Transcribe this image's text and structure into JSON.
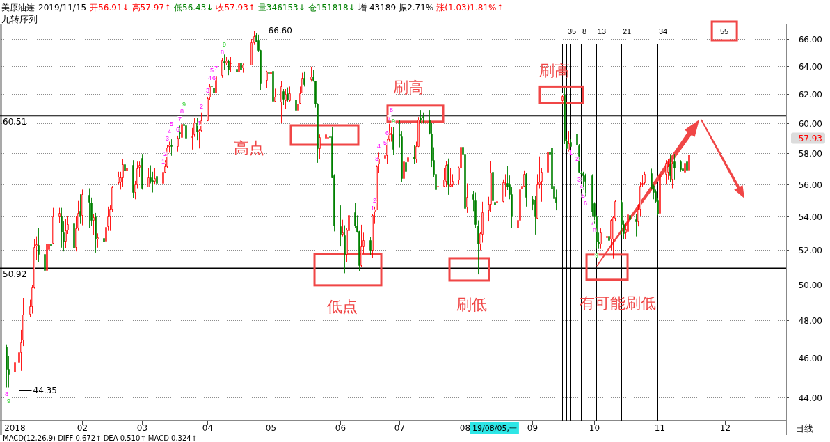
{
  "chart_data": {
    "type": "candlestick",
    "title": "美原油连",
    "subtitle": "2019/11/15",
    "x": [
      "2018-12-27",
      "2018-12-28",
      "2018-12-31",
      "2019-01-02",
      "2019-01-03",
      "2019-01-04",
      "2019-01-07",
      "2019-01-08",
      "2019-01-09",
      "2019-01-10",
      "2019-01-11",
      "2019-01-14",
      "2019-01-15",
      "2019-01-16",
      "2019-01-17",
      "2019-01-18",
      "2019-01-21",
      "2019-01-22",
      "2019-01-23",
      "2019-01-24",
      "2019-01-25",
      "2019-01-28",
      "2019-01-29",
      "2019-01-30",
      "2019-01-31",
      "2019-02-01",
      "2019-02-04",
      "2019-02-05",
      "2019-02-06",
      "2019-02-07",
      "2019-02-08",
      "2019-02-11",
      "2019-02-12",
      "2019-02-13",
      "2019-02-14",
      "2019-02-15",
      "2019-02-18",
      "2019-02-19",
      "2019-02-20",
      "2019-02-21",
      "2019-02-22",
      "2019-02-25",
      "2019-02-26",
      "2019-02-27",
      "2019-02-28",
      "2019-03-01",
      "2019-03-04",
      "2019-03-05",
      "2019-03-06",
      "2019-03-07",
      "2019-03-08",
      "2019-03-11",
      "2019-03-12",
      "2019-03-13",
      "2019-03-14",
      "2019-03-15",
      "2019-03-18",
      "2019-03-19",
      "2019-03-20",
      "2019-03-21",
      "2019-03-22",
      "2019-03-25",
      "2019-03-26",
      "2019-03-27",
      "2019-03-28",
      "2019-03-29",
      "2019-04-01",
      "2019-04-02",
      "2019-04-03",
      "2019-04-04",
      "2019-04-05",
      "2019-04-08",
      "2019-04-09",
      "2019-04-10",
      "2019-04-11",
      "2019-04-12",
      "2019-04-15",
      "2019-04-16",
      "2019-04-17",
      "2019-04-18",
      "2019-04-22",
      "2019-04-23",
      "2019-04-24",
      "2019-04-25",
      "2019-04-26",
      "2019-04-29",
      "2019-04-30",
      "2019-05-01",
      "2019-05-02",
      "2019-05-03",
      "2019-05-06",
      "2019-05-07",
      "2019-05-08",
      "2019-05-09",
      "2019-05-10",
      "2019-05-13",
      "2019-05-14",
      "2019-05-15",
      "2019-05-16",
      "2019-05-17",
      "2019-05-20",
      "2019-05-21",
      "2019-05-22",
      "2019-05-23",
      "2019-05-24",
      "2019-05-27",
      "2019-05-28",
      "2019-05-29",
      "2019-05-30",
      "2019-05-31",
      "2019-06-03",
      "2019-06-04",
      "2019-06-05",
      "2019-06-06",
      "2019-06-07",
      "2019-06-10",
      "2019-06-11",
      "2019-06-12",
      "2019-06-13",
      "2019-06-14",
      "2019-06-17",
      "2019-06-18",
      "2019-06-19",
      "2019-06-20",
      "2019-06-21",
      "2019-06-24",
      "2019-06-25",
      "2019-06-26",
      "2019-06-27",
      "2019-06-28",
      "2019-07-01",
      "2019-07-02",
      "2019-07-03",
      "2019-07-04",
      "2019-07-05",
      "2019-07-08",
      "2019-07-09",
      "2019-07-10",
      "2019-07-11",
      "2019-07-12",
      "2019-07-15",
      "2019-07-16",
      "2019-07-17",
      "2019-07-18",
      "2019-07-19",
      "2019-07-22",
      "2019-07-23",
      "2019-07-24",
      "2019-07-25",
      "2019-07-26",
      "2019-07-29",
      "2019-07-30",
      "2019-07-31",
      "2019-08-01",
      "2019-08-02",
      "2019-08-05",
      "2019-08-06",
      "2019-08-07",
      "2019-08-08",
      "2019-08-09",
      "2019-08-12",
      "2019-08-13",
      "2019-08-14",
      "2019-08-15",
      "2019-08-16",
      "2019-08-19",
      "2019-08-20",
      "2019-08-21",
      "2019-08-22",
      "2019-08-23",
      "2019-08-26",
      "2019-08-27",
      "2019-08-28",
      "2019-08-29",
      "2019-08-30",
      "2019-09-02",
      "2019-09-03",
      "2019-09-04",
      "2019-09-05",
      "2019-09-06",
      "2019-09-09",
      "2019-09-10",
      "2019-09-11",
      "2019-09-12",
      "2019-09-13",
      "2019-09-16",
      "2019-09-17",
      "2019-09-18",
      "2019-09-19",
      "2019-09-20",
      "2019-09-23",
      "2019-09-24",
      "2019-09-25",
      "2019-09-26",
      "2019-09-27",
      "2019-09-30",
      "2019-10-01",
      "2019-10-02",
      "2019-10-03",
      "2019-10-04",
      "2019-10-07",
      "2019-10-08",
      "2019-10-09",
      "2019-10-10",
      "2019-10-11",
      "2019-10-14",
      "2019-10-15",
      "2019-10-16",
      "2019-10-17",
      "2019-10-18",
      "2019-10-21",
      "2019-10-22",
      "2019-10-23",
      "2019-10-24",
      "2019-10-25",
      "2019-10-28",
      "2019-10-29",
      "2019-10-30",
      "2019-10-31",
      "2019-11-01",
      "2019-11-04",
      "2019-11-05",
      "2019-11-06",
      "2019-11-07",
      "2019-11-08",
      "2019-11-11",
      "2019-11-12",
      "2019-11-13",
      "2019-11-14",
      "2019-11-15"
    ],
    "ohlc": [
      [
        46.59,
        46.72,
        44.5,
        45.43
      ],
      [
        45.43,
        46.09,
        44.5,
        45.16
      ],
      [
        45.28,
        46.52,
        44.78,
        45.78
      ],
      [
        45.78,
        47.83,
        44.35,
        46.29
      ],
      [
        46.29,
        47.49,
        45.34,
        46.83
      ],
      [
        46.96,
        49.24,
        46.63,
        48.31
      ],
      [
        48.37,
        49.14,
        48.17,
        48.79
      ],
      [
        48.79,
        49.97,
        48.37,
        49.83
      ],
      [
        49.83,
        52.64,
        49.76,
        52.15
      ],
      [
        52.22,
        52.79,
        51.4,
        52.31
      ],
      [
        52.28,
        53.31,
        51.26,
        51.76
      ],
      [
        51.76,
        52.12,
        50.4,
        50.83
      ],
      [
        50.83,
        52.49,
        50.69,
        52.34
      ],
      [
        52.04,
        52.49,
        51.54,
        52.34
      ],
      [
        52.34,
        52.64,
        51.04,
        52.24
      ],
      [
        52.42,
        54.52,
        52.34,
        54.0
      ],
      [
        54.0,
        54.52,
        53.61,
        54.21
      ],
      [
        54.0,
        54.52,
        52.12,
        53.06
      ],
      [
        53.01,
        53.69,
        51.9,
        52.49
      ],
      [
        52.52,
        53.84,
        52.09,
        53.16
      ],
      [
        53.21,
        53.99,
        52.94,
        53.54
      ],
      [
        53.58,
        53.69,
        51.36,
        52.12
      ],
      [
        52.15,
        53.99,
        51.9,
        53.28
      ],
      [
        53.31,
        54.95,
        53.12,
        54.21
      ],
      [
        54.32,
        55.36,
        53.54,
        54.0
      ],
      [
        54.06,
        55.66,
        53.46,
        55.36
      ],
      [
        55.31,
        55.74,
        53.31,
        54.9
      ],
      [
        54.85,
        55.16,
        53.42,
        53.79
      ],
      [
        53.76,
        54.14,
        52.87,
        53.94
      ],
      [
        54.0,
        54.21,
        51.83,
        52.64
      ],
      [
        52.64,
        52.97,
        52.12,
        52.75
      ],
      [
        52.67,
        52.82,
        51.29,
        52.49
      ],
      [
        52.52,
        53.61,
        52.31,
        53.36
      ],
      [
        53.39,
        54.6,
        53.12,
        53.99
      ],
      [
        53.99,
        54.67,
        53.12,
        54.47
      ],
      [
        54.47,
        55.89,
        54.29,
        55.82
      ],
      [
        56.13,
        56.79,
        55.97,
        56.46
      ],
      [
        56.17,
        56.79,
        55.66,
        56.41
      ],
      [
        56.43,
        57.62,
        55.82,
        57.26
      ],
      [
        57.26,
        57.67,
        56.71,
        56.88
      ],
      [
        56.88,
        57.87,
        56.71,
        57.07
      ],
      [
        57.21,
        57.54,
        55.13,
        55.48
      ],
      [
        55.48,
        56.21,
        55.05,
        55.97
      ],
      [
        55.97,
        57.45,
        55.74,
        56.99
      ],
      [
        57.09,
        57.45,
        56.46,
        57.24
      ],
      [
        57.7,
        57.95,
        55.66,
        55.77
      ],
      [
        55.85,
        57.04,
        55.82,
        56.43
      ],
      [
        56.43,
        57.21,
        56.05,
        56.21
      ],
      [
        56.26,
        56.79,
        55.48,
        56.18
      ],
      [
        56.21,
        57.01,
        55.97,
        56.38
      ],
      [
        56.5,
        56.55,
        54.55,
        56.05
      ],
      [
        56.05,
        57.04,
        55.97,
        56.79
      ],
      [
        56.79,
        57.54,
        56.74,
        57.12
      ],
      [
        57.12,
        58.55,
        57.04,
        58.39
      ],
      [
        58.44,
        58.76,
        58.03,
        58.55
      ],
      [
        58.55,
        58.92,
        57.83,
        58.44
      ],
      [
        58.48,
        59.16,
        58.11,
        59.0
      ],
      [
        59.37,
        59.84,
        58.97,
        59.29
      ],
      [
        59.08,
        60.31,
        58.63,
        59.97
      ],
      [
        59.97,
        60.36,
        59.69,
        59.85
      ],
      [
        59.84,
        60.05,
        58.35,
        59.03
      ],
      [
        59.05,
        59.68,
        58.24,
        59.13
      ],
      [
        59.24,
        60.34,
        59.08,
        60.05
      ],
      [
        60.05,
        60.36,
        58.87,
        59.44
      ],
      [
        59.44,
        59.6,
        58.31,
        59.53
      ],
      [
        59.53,
        60.73,
        59.44,
        60.19
      ],
      [
        60.19,
        61.83,
        60.14,
        61.75
      ],
      [
        61.83,
        62.71,
        61.61,
        62.57
      ],
      [
        62.62,
        62.95,
        62.09,
        62.54
      ],
      [
        62.48,
        62.71,
        61.88,
        62.13
      ],
      [
        62.14,
        63.38,
        61.83,
        63.29
      ],
      [
        63.34,
        64.58,
        63.16,
        64.47
      ],
      [
        64.38,
        64.85,
        63.73,
        64.25
      ],
      [
        64.25,
        64.66,
        64.09,
        64.43
      ],
      [
        64.43,
        64.47,
        63.34,
        63.73
      ],
      [
        64.19,
        64.66,
        63.57,
        64.28
      ],
      [
        63.79,
        63.96,
        63.02,
        63.61
      ],
      [
        63.61,
        64.38,
        63.02,
        64.28
      ],
      [
        64.28,
        64.62,
        63.64,
        63.73
      ],
      [
        63.91,
        64.19,
        63.52,
        64.09
      ],
      [
        64.09,
        66.0,
        64.06,
        65.72
      ],
      [
        65.75,
        66.6,
        65.6,
        66.23
      ],
      [
        66.28,
        66.47,
        65.75,
        65.79
      ],
      [
        65.91,
        66.32,
        65.04,
        65.19
      ],
      [
        65.15,
        65.19,
        62.27,
        62.8
      ],
      [
        62.98,
        63.66,
        62.45,
        63.61
      ],
      [
        63.57,
        64.77,
        62.98,
        63.52
      ],
      [
        63.43,
        63.88,
        62.77,
        63.61
      ],
      [
        63.64,
        63.7,
        60.93,
        61.54
      ],
      [
        61.54,
        62.39,
        61.44,
        61.83
      ],
      [
        61.49,
        62.95,
        60.05,
        62.54
      ],
      [
        62.23,
        62.36,
        61.24,
        61.66
      ],
      [
        61.58,
        62.36,
        60.98,
        62.0
      ],
      [
        62.09,
        62.48,
        61.49,
        61.63
      ],
      [
        61.58,
        62.54,
        61.49,
        62.09
      ],
      [
        61.63,
        63.34,
        60.73,
        60.9
      ],
      [
        60.9,
        62.09,
        60.81,
        61.32
      ],
      [
        61.41,
        62.54,
        61.32,
        62.09
      ],
      [
        62.13,
        63.52,
        62.09,
        63.16
      ],
      [
        63.16,
        63.61,
        62.54,
        62.71
      ],
      [
        63.07,
        63.96,
        62.89,
        63.25
      ],
      [
        63.25,
        63.73,
        62.89,
        63.02
      ],
      [
        62.95,
        62.95,
        61.07,
        61.32
      ],
      [
        61.32,
        61.37,
        57.37,
        58.31
      ],
      [
        58.31,
        59.24,
        57.62,
        59.08
      ],
      [
        59.0,
        59.32,
        58.27,
        59.24
      ],
      [
        59.0,
        59.56,
        58.35,
        59.08
      ],
      [
        59.11,
        59.16,
        56.96,
        59.05
      ],
      [
        59.13,
        59.73,
        56.4,
        56.43
      ],
      [
        56.55,
        56.63,
        53.09,
        53.46
      ],
      [
        53.42,
        54.67,
        52.19,
        52.94
      ],
      [
        52.94,
        53.79,
        52.79,
        53.01
      ],
      [
        52.87,
        53.46,
        50.64,
        51.76
      ],
      [
        51.76,
        53.27,
        51.26,
        53.19
      ],
      [
        53.16,
        54.26,
        52.72,
        54.06
      ],
      [
        54.26,
        54.85,
        53.31,
        53.46
      ],
      [
        53.46,
        54.06,
        53.01,
        53.06
      ],
      [
        53.09,
        53.12,
        50.76,
        51.11
      ],
      [
        51.11,
        53.49,
        51.01,
        52.19
      ],
      [
        52.19,
        53.01,
        51.76,
        52.55
      ],
      [
        52.55,
        52.75,
        51.69,
        51.97
      ],
      [
        51.97,
        54.14,
        51.54,
        54.09
      ],
      [
        54.29,
        54.6,
        53.54,
        54.41
      ],
      [
        54.41,
        57.21,
        54.37,
        57.12
      ],
      [
        57.32,
        58.03,
        56.71,
        57.62
      ],
      [
        57.7,
        58.27,
        56.79,
        57.87
      ],
      [
        57.87,
        58.92,
        57.29,
        58.84
      ],
      [
        58.92,
        59.97,
        58.76,
        59.24
      ],
      [
        59.24,
        59.73,
        58.76,
        59.32
      ],
      [
        59.24,
        59.73,
        57.87,
        58.27
      ],
      [
        59.27,
        60.22,
        58.39,
        59.21
      ],
      [
        59.13,
        59.48,
        56.13,
        56.38
      ],
      [
        56.38,
        57.62,
        56.05,
        57.45
      ],
      [
        57.4,
        57.79,
        56.55,
        56.83
      ],
      [
        57.45,
        57.82,
        56.46,
        57.74
      ],
      [
        57.79,
        58.53,
        57.29,
        57.62
      ],
      [
        57.62,
        58.76,
        57.37,
        58.44
      ],
      [
        58.44,
        60.42,
        58.4,
        60.25
      ],
      [
        60.39,
        60.9,
        60.02,
        60.22
      ],
      [
        60.47,
        60.73,
        60.0,
        60.36
      ],
      [
        60.25,
        60.9,
        59.24,
        59.32
      ],
      [
        59.29,
        60.05,
        57.09,
        57.57
      ],
      [
        57.57,
        58.39,
        56.43,
        56.63
      ],
      [
        56.63,
        57.34,
        54.75,
        55.66
      ],
      [
        55.85,
        56.79,
        55.13,
        55.89
      ],
      [
        55.89,
        57.04,
        55.82,
        56.3
      ],
      [
        56.21,
        57.49,
        55.85,
        57.21
      ],
      [
        57.26,
        57.65,
        55.33,
        55.97
      ],
      [
        55.89,
        57.01,
        55.82,
        55.97
      ],
      [
        55.97,
        56.63,
        55.85,
        56.21
      ],
      [
        56.3,
        57.12,
        55.97,
        57.07
      ],
      [
        57.04,
        58.53,
        56.99,
        58.4
      ],
      [
        58.4,
        58.84,
        57.87,
        57.95
      ],
      [
        57.95,
        57.98,
        53.61,
        54.52
      ],
      [
        54.6,
        56.05,
        54.21,
        55.21
      ],
      [
        55.39,
        55.59,
        54.32,
        55.05
      ],
      [
        54.98,
        55.48,
        53.31,
        53.54
      ],
      [
        53.46,
        53.76,
        50.57,
        52.34
      ],
      [
        52.37,
        53.06,
        51.97,
        52.97
      ],
      [
        52.94,
        54.9,
        52.42,
        54.26
      ],
      [
        54.37,
        55.21,
        53.69,
        54.75
      ],
      [
        54.75,
        57.49,
        54.26,
        56.76
      ],
      [
        56.79,
        56.88,
        53.99,
        54.98
      ],
      [
        54.9,
        55.28,
        53.84,
        54.72
      ],
      [
        54.87,
        55.66,
        54.29,
        54.93
      ],
      [
        54.93,
        56.3,
        54.87,
        56.1
      ],
      [
        56.05,
        56.63,
        55.21,
        56.13
      ],
      [
        56.08,
        57.17,
        55.63,
        55.85
      ],
      [
        55.97,
        56.55,
        55.05,
        55.36
      ],
      [
        55.39,
        55.85,
        53.31,
        53.99
      ],
      [
        53.31,
        53.99,
        53.01,
        53.79
      ],
      [
        53.79,
        55.74,
        53.72,
        55.69
      ],
      [
        55.74,
        56.76,
        55.36,
        55.89
      ],
      [
        55.89,
        56.88,
        55.82,
        56.63
      ],
      [
        56.66,
        56.71,
        54.6,
        55.21
      ],
      [
        55.05,
        55.28,
        54.37,
        54.78
      ],
      [
        55.02,
        55.24,
        52.9,
        53.99
      ],
      [
        53.91,
        56.63,
        53.91,
        55.97
      ],
      [
        55.97,
        57.79,
        55.74,
        56.18
      ],
      [
        56.21,
        57.04,
        54.9,
        56.79
      ],
      [
        56.79,
        58.2,
        56.63,
        58.11
      ],
      [
        58.08,
        58.79,
        57.29,
        57.95
      ],
      [
        58.35,
        58.76,
        55.66,
        55.74
      ],
      [
        55.89,
        56.38,
        54.06,
        55.13
      ],
      [
        55.18,
        55.66,
        54.37,
        54.87
      ],
      [
        61.58,
        61.92,
        61.49,
        61.86
      ],
      [
        61.95,
        62.45,
        58.6,
        58.84
      ],
      [
        58.84,
        58.92,
        58.27,
        58.32
      ],
      [
        58.23,
        59.48,
        58.11,
        58.64
      ],
      [
        58.76,
        58.92,
        58.44,
        58.48
      ],
      [
        59.29,
        59.4,
        58.03,
        58.56
      ],
      [
        58.52,
        58.6,
        56.71,
        56.79
      ],
      [
        56.74,
        56.83,
        56.63,
        56.68
      ],
      [
        56.68,
        56.79,
        55.66,
        56.55
      ],
      [
        56.55,
        56.66,
        55.21,
        56.21
      ],
      [
        56.55,
        56.63,
        53.99,
        54.29
      ],
      [
        54.82,
        54.87,
        53.54,
        53.99
      ],
      [
        54.0,
        54.06,
        52.04,
        52.49
      ],
      [
        52.49,
        53.01,
        52.04,
        52.34
      ],
      [
        52.34,
        53.27,
        52.04,
        53.01
      ],
      [
        52.72,
        54.06,
        52.57,
        52.82
      ],
      [
        52.82,
        53.01,
        51.97,
        52.57
      ],
      [
        52.64,
        53.84,
        51.97,
        53.79
      ],
      [
        52.64,
        53.99,
        51.47,
        53.94
      ],
      [
        53.91,
        54.98,
        53.69,
        54.93
      ],
      [
        54.9,
        54.98,
        52.87,
        53.54
      ],
      [
        53.54,
        53.76,
        52.61,
        52.97
      ],
      [
        53.01,
        53.61,
        52.64,
        53.24
      ],
      [
        53.09,
        54.21,
        52.64,
        54.11
      ],
      [
        54.06,
        54.52,
        52.94,
        53.84
      ],
      [
        53.84,
        54.14,
        52.79,
        53.69
      ],
      [
        53.69,
        54.75,
        53.39,
        54.44
      ],
      [
        54.44,
        56.13,
        53.99,
        55.89
      ],
      [
        55.97,
        56.58,
        55.82,
        56.08
      ],
      [
        56.13,
        56.79,
        55.97,
        56.63
      ],
      [
        56.68,
        56.99,
        55.66,
        55.74
      ],
      [
        55.89,
        55.97,
        55.05,
        55.51
      ],
      [
        55.54,
        55.66,
        54.82,
        54.93
      ],
      [
        54.98,
        55.13,
        54.06,
        54.17
      ],
      [
        54.21,
        56.71,
        54.14,
        56.63
      ],
      [
        56.63,
        57.54,
        55.97,
        57.37
      ],
      [
        56.79,
        57.62,
        56.3,
        57.12
      ],
      [
        57.29,
        57.95,
        56.13,
        56.55
      ],
      [
        56.33,
        57.45,
        55.74,
        57.37
      ],
      [
        57.45,
        57.95,
        56.3,
        57.04
      ],
      [
        57.45,
        57.54,
        56.79,
        56.96
      ],
      [
        56.99,
        57.54,
        56.55,
        56.88
      ],
      [
        56.79,
        57.54,
        56.71,
        57.37
      ],
      [
        57.45,
        57.54,
        56.79,
        56.9
      ],
      [
        56.91,
        57.97,
        56.43,
        57.93
      ]
    ],
    "colors": [
      "#008000",
      "#008000",
      "#ff0000",
      "#ff0000",
      "#ff0000",
      "#ff0000",
      "#ff0000",
      "#ff0000",
      "#ff0000",
      "#ff0000",
      "#008000",
      "#008000",
      "#ff0000",
      "#ff0000",
      "#008000",
      "#ff0000",
      "#ff0000",
      "#008000",
      "#008000",
      "#ff0000",
      "#ff0000",
      "#008000",
      "#ff0000",
      "#ff0000",
      "#008000",
      "#ff0000",
      "#008000",
      "#008000",
      "#ff0000",
      "#008000",
      "#ff0000",
      "#008000",
      "#ff0000",
      "#ff0000",
      "#ff0000",
      "#ff0000",
      "#ff0000",
      "#ff0000",
      "#ff0000",
      "#008000",
      "#ff0000",
      "#008000",
      "#ff0000",
      "#ff0000",
      "#ff0000",
      "#008000",
      "#ff0000",
      "#008000",
      "#008000",
      "#ff0000",
      "#008000",
      "#ff0000",
      "#ff0000",
      "#ff0000",
      "#ff0000",
      "#008000",
      "#ff0000",
      "#008000",
      "#ff0000",
      "#008000",
      "#008000",
      "#ff0000",
      "#ff0000",
      "#008000",
      "#ff0000",
      "#ff0000",
      "#ff0000",
      "#ff0000",
      "#008000",
      "#008000",
      "#ff0000",
      "#ff0000",
      "#008000",
      "#ff0000",
      "#008000",
      "#ff0000",
      "#008000",
      "#ff0000",
      "#008000",
      "#ff0000",
      "#ff0000",
      "#ff0000",
      "#008000",
      "#008000",
      "#008000",
      "#ff0000",
      "#008000",
      "#ff0000",
      "#008000",
      "#ff0000",
      "#ff0000",
      "#008000",
      "#ff0000",
      "#008000",
      "#ff0000",
      "#008000",
      "#ff0000",
      "#ff0000",
      "#ff0000",
      "#008000",
      "#ff0000",
      "#008000",
      "#008000",
      "#008000",
      "#ff0000",
      "#ff0000",
      "#ff0000",
      "#008000",
      "#008000",
      "#008000",
      "#008000",
      "#ff0000",
      "#008000",
      "#ff0000",
      "#ff0000",
      "#008000",
      "#008000",
      "#008000",
      "#ff0000",
      "#ff0000",
      "#008000",
      "#ff0000",
      "#ff0000",
      "#ff0000",
      "#ff0000",
      "#ff0000",
      "#ff0000",
      "#ff0000",
      "#ff0000",
      "#008000",
      "#008000",
      "#008000",
      "#ff0000",
      "#008000",
      "#ff0000",
      "#008000",
      "#ff0000",
      "#ff0000",
      "#008000",
      "#008000",
      "#008000",
      "#008000",
      "#008000",
      "#008000",
      "#ff0000",
      "#ff0000",
      "#ff0000",
      "#008000",
      "#ff0000",
      "#ff0000",
      "#ff0000",
      "#ff0000",
      "#008000",
      "#008000",
      "#ff0000",
      "#008000",
      "#008000",
      "#008000",
      "#ff0000",
      "#ff0000",
      "#ff0000",
      "#ff0000",
      "#008000",
      "#008000",
      "#ff0000",
      "#ff0000",
      "#ff0000",
      "#008000",
      "#008000",
      "#008000",
      "#ff0000",
      "#ff0000",
      "#ff0000",
      "#ff0000",
      "#008000",
      "#008000",
      "#008000",
      "#ff0000",
      "#ff0000",
      "#ff0000",
      "#ff0000",
      "#008000",
      "#008000",
      "#008000",
      "#008000",
      "#ff0000",
      "#008000",
      "#008000",
      "#ff0000",
      "#008000",
      "#008000",
      "#008000",
      "#008000",
      "#008000",
      "#008000",
      "#008000",
      "#008000",
      "#008000",
      "#008000",
      "#ff0000",
      "#ff0000",
      "#008000",
      "#ff0000",
      "#ff0000",
      "#ff0000",
      "#008000",
      "#008000",
      "#ff0000",
      "#ff0000",
      "#008000",
      "#008000",
      "#ff0000",
      "#ff0000",
      "#ff0000",
      "#ff0000",
      "#008000",
      "#008000",
      "#008000",
      "#008000",
      "#ff0000",
      "#ff0000",
      "#ff0000",
      "#008000",
      "#ff0000",
      "#008000",
      "#008000",
      "#008000",
      "#ff0000",
      "#008000",
      "#ff0000"
    ],
    "xlim": [
      "2018-12-24",
      "2019-12-31"
    ],
    "xticks": [
      {
        "value": "2018-12-31",
        "label": "2018"
      },
      {
        "value": "2019-02-01",
        "label": "02"
      },
      {
        "value": "2019-03-01",
        "label": "03"
      },
      {
        "value": "2019-04-01",
        "label": "04"
      },
      {
        "value": "2019-05-01",
        "label": "05"
      },
      {
        "value": "2019-06-03",
        "label": "06"
      },
      {
        "value": "2019-07-01",
        "label": "07"
      },
      {
        "value": "2019-08-01",
        "label": "08"
      },
      {
        "value": "2019-09-02",
        "label": "09"
      },
      {
        "value": "2019-10-01",
        "label": "10"
      },
      {
        "value": "2019-11-01",
        "label": "11"
      },
      {
        "value": "2019-12-02",
        "label": "12"
      }
    ],
    "ylim": [
      42.9,
      67.1
    ],
    "yticks": [
      {
        "value": 44,
        "label": "44.00"
      },
      {
        "value": 46,
        "label": "46.00"
      },
      {
        "value": 48,
        "label": "48.00"
      },
      {
        "value": 50,
        "label": "50.00"
      },
      {
        "value": 52,
        "label": "52.00"
      },
      {
        "value": 54,
        "label": "54.00"
      },
      {
        "value": 56,
        "label": "56.00"
      },
      {
        "value": 58,
        "label": "58.00"
      },
      {
        "value": 60,
        "label": "60.00"
      },
      {
        "value": 62,
        "label": "62.00"
      },
      {
        "value": 64,
        "label": "64.00"
      },
      {
        "value": 66,
        "label": "66.00"
      }
    ],
    "log": true,
    "grid": "y",
    "ref_lines": [
      {
        "axis": "y",
        "value": 60.51,
        "label": "60.51"
      },
      {
        "axis": "y",
        "value": 50.92,
        "label": "50.92"
      },
      {
        "axis": "x",
        "value": "2019-09-16"
      },
      {
        "axis": "x",
        "value": "2019-09-18",
        "label": "3"
      },
      {
        "axis": "x",
        "value": "2019-09-20",
        "label": "5"
      },
      {
        "axis": "x",
        "value": "2019-09-25",
        "label": "8"
      },
      {
        "axis": "x",
        "value": "2019-10-02",
        "label": "13"
      },
      {
        "axis": "x",
        "value": "2019-10-14",
        "label": "21"
      },
      {
        "axis": "x",
        "value": "2019-10-31",
        "label": "34"
      },
      {
        "axis": "x",
        "value": "2019-11-29",
        "label": "55"
      }
    ],
    "annotations": [
      "开56.91↓",
      "高57.97↑",
      "低56.43↓",
      "收57.93↑",
      "量346153↓",
      "仓151818↓",
      "增-43189",
      "振2.71%",
      "涨(1.03)1.81%↑",
      "九转序列",
      {
        "text": "66.60",
        "x": "2019-04-23",
        "y": 66.6
      },
      {
        "text": "44.35",
        "x": "2019-01-02",
        "y": 44.35
      },
      "57.93",
      "高点",
      {
        "text": "刷高",
        "x": "2019-07-11",
        "y": 60.65
      },
      {
        "text": "低点",
        "x": "2019-06-10",
        "y": 50.8
      },
      {
        "text": "刷低",
        "x": "2019-08-07",
        "y": 50.8
      },
      {
        "text": "刷高",
        "x": "2019-09-16",
        "y": 61.95
      },
      {
        "text": "有可能刷低",
        "x": "2019-10-08",
        "y": 50.9
      },
      "19/08/05,一",
      "日线",
      "MACD(12,26,9) DIFF 0.672↑ DEA 0.510↑ MACD 0.324↑",
      {
        "text": "1",
        "x": "2019-03-11",
        "y": 57.04
      },
      {
        "text": "2",
        "x": "2019-03-12",
        "y": 57.54
      },
      {
        "text": "3",
        "x": "2019-03-13",
        "y": 58.55
      },
      {
        "text": "4",
        "x": "2019-03-14",
        "y": 58.76
      },
      {
        "text": "5",
        "x": "2019-03-15",
        "y": 58.92
      },
      {
        "text": "6",
        "x": "2019-03-18",
        "y": 59.16
      },
      {
        "text": "7",
        "x": "2019-03-19",
        "y": 59.84
      },
      {
        "text": "8",
        "x": "2019-03-20",
        "y": 60.31
      },
      {
        "text": "9",
        "x": "2019-03-21",
        "y": 60.36
      },
      {
        "text": "1",
        "x": "2019-03-28",
        "y": 59.6
      },
      {
        "text": "2",
        "x": "2019-03-29",
        "y": 60.73
      },
      {
        "text": "3",
        "x": "2019-04-01",
        "y": 61.83
      },
      {
        "text": "4",
        "x": "2019-04-02",
        "y": 62.71
      },
      {
        "text": "5",
        "x": "2019-04-03",
        "y": 62.95
      },
      {
        "text": "6",
        "x": "2019-04-04",
        "y": 62.71
      },
      {
        "text": "7",
        "x": "2019-04-05",
        "y": 63.38
      },
      {
        "text": "8",
        "x": "2019-04-08",
        "y": 64.58
      },
      {
        "text": "9",
        "x": "2019-04-09",
        "y": 64.85
      },
      {
        "text": "1",
        "x": "2019-06-18",
        "y": 54.14
      },
      {
        "text": "2",
        "x": "2019-06-19",
        "y": 54.6
      },
      {
        "text": "3",
        "x": "2019-06-20",
        "y": 57.21
      },
      {
        "text": "4",
        "x": "2019-06-21",
        "y": 58.03
      },
      {
        "text": "5",
        "x": "2019-06-24",
        "y": 58.27
      },
      {
        "text": "6",
        "x": "2019-06-25",
        "y": 58.92
      },
      {
        "text": "7",
        "x": "2019-06-26",
        "y": 59.97
      },
      {
        "text": "8",
        "x": "2019-06-27",
        "y": 59.73
      },
      {
        "text": "9",
        "x": "2019-06-28",
        "y": 59.73
      },
      {
        "text": "1",
        "x": "2019-09-20",
        "y": 58.44
      },
      {
        "text": "2",
        "x": "2019-09-23",
        "y": 58.03
      },
      {
        "text": "3",
        "x": "2019-09-24",
        "y": 56.71
      },
      {
        "text": "4",
        "x": "2019-09-25",
        "y": 56.63
      },
      {
        "text": "5",
        "x": "2019-09-26",
        "y": 55.66
      },
      {
        "text": "6",
        "x": "2019-09-27",
        "y": 55.21
      },
      {
        "text": "7",
        "x": "2019-09-30",
        "y": 53.99
      },
      {
        "text": "8",
        "x": "2019-10-01",
        "y": 53.54
      },
      {
        "text": "9",
        "x": "2019-10-02",
        "y": 52.04
      },
      {
        "text": "8",
        "x": "2018-12-27",
        "y": 44.5
      },
      {
        "text": "9",
        "x": "2018-12-28",
        "y": 44.5
      }
    ]
  }
}
